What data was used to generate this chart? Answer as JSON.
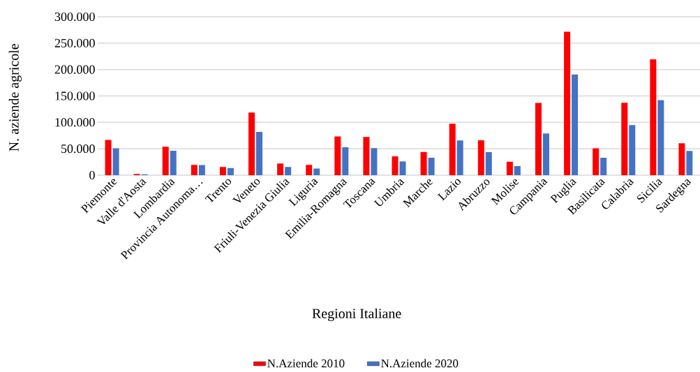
{
  "chart_data": {
    "type": "bar",
    "xlabel": "Regioni Italiane",
    "ylabel": "N. aziende agricole",
    "categories": [
      "Piemonte",
      "Valle d'Aosta",
      "Lombardia",
      "Provincia Autonoma…",
      "Trento",
      "Veneto",
      "Friuli-Venezia Giulia",
      "Liguria",
      "Emilia-Romagna",
      "Toscana",
      "Umbria",
      "Marche",
      "Lazio",
      "Abruzzo",
      "Molise",
      "Campania",
      "Puglia",
      "Basilicata",
      "Calabria",
      "Sicilia",
      "Sardegna"
    ],
    "series": [
      {
        "name": "N.Aziende 2010",
        "color": "#ff0000",
        "values": [
          66600,
          2200,
          53800,
          19400,
          15400,
          118700,
          22100,
          19400,
          73300,
          72400,
          35700,
          44100,
          97500,
          66200,
          25600,
          136800,
          271800,
          50800,
          137200,
          219300,
          60500
        ]
      },
      {
        "name": "N.Aziende 2020",
        "color": "#4472c4",
        "values": [
          50800,
          1800,
          46300,
          19000,
          13700,
          82100,
          15400,
          12400,
          53000,
          51200,
          26000,
          33100,
          65800,
          43700,
          17200,
          79000,
          191100,
          33100,
          94900,
          142100,
          45900
        ]
      }
    ],
    "ylim": [
      0,
      300000
    ],
    "yticks": [
      0,
      {
        "value": 50000,
        "label": "50.000"
      },
      {
        "value": 100000,
        "label": "100.000"
      },
      {
        "value": 150000,
        "label": "150.000"
      },
      {
        "value": 200000,
        "label": "200.000"
      },
      {
        "value": 250000,
        "label": "250.000"
      },
      {
        "value": 300000,
        "label": "300.000"
      }
    ],
    "grid": "y",
    "legend": "bottom"
  }
}
